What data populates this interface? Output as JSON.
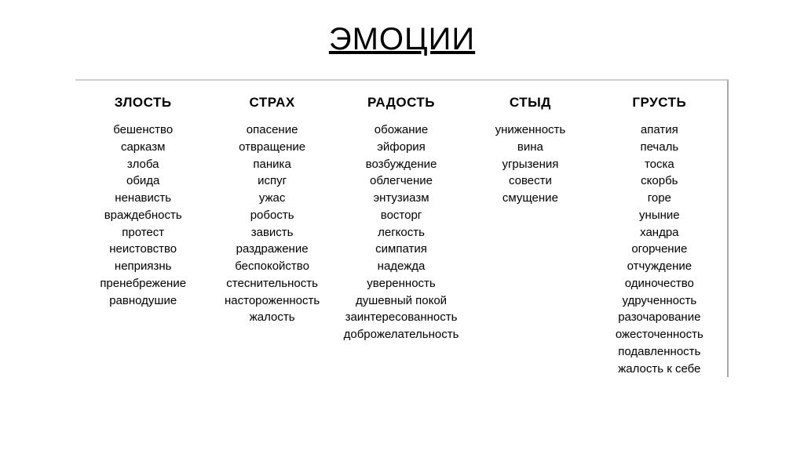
{
  "title": "ЭМОЦИИ",
  "columns": [
    {
      "header": "ЗЛОСТЬ",
      "items": [
        "бешенство",
        "сарказм",
        "злоба",
        "обида",
        "ненависть",
        "враждебность",
        "протест",
        "неистовство",
        "неприязнь",
        "пренебрежение",
        "равнодушие"
      ]
    },
    {
      "header": "СТРАХ",
      "items": [
        "опасение",
        "отвращение",
        "паника",
        "испуг",
        "ужас",
        "робость",
        "зависть",
        "раздражение",
        "беспокойство",
        "стеснительность",
        "настороженность",
        "жалость"
      ]
    },
    {
      "header": "РАДОСТЬ",
      "items": [
        "обожание",
        "эйфория",
        "возбуждение",
        "облегчение",
        "энтузиазм",
        "восторг",
        "легкость",
        "симпатия",
        "надежда",
        "уверенность",
        "душевный покой",
        "заинтересованность",
        "доброжелательность"
      ]
    },
    {
      "header": "СТЫД",
      "items": [
        "униженность",
        "вина",
        "угрызения",
        "совести",
        "смущение"
      ]
    },
    {
      "header": "ГРУСТЬ",
      "items": [
        "апатия",
        "печаль",
        "тоска",
        "скорбь",
        "горе",
        "уныние",
        "хандра",
        "огорчение",
        "отчуждение",
        "одиночество",
        "удрученность",
        "разочарование",
        "ожесточенность",
        "подавленность",
        "жалость к себе"
      ]
    }
  ]
}
